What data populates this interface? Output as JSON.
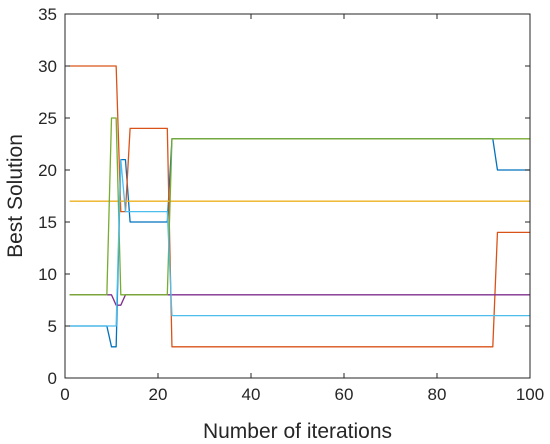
{
  "chart_data": {
    "type": "line",
    "xlabel": "Number of iterations",
    "ylabel": "Best Solution",
    "xlim": [
      0,
      100
    ],
    "ylim": [
      0,
      35
    ],
    "xticks": [
      0,
      20,
      40,
      60,
      80,
      100
    ],
    "yticks": [
      0,
      5,
      10,
      15,
      20,
      25,
      30,
      35
    ],
    "grid": false,
    "legend": "none",
    "series": [
      {
        "color": "#0072BD",
        "points": [
          [
            1,
            5
          ],
          [
            9,
            5
          ],
          [
            10,
            3
          ],
          [
            11,
            3
          ],
          [
            12,
            21
          ],
          [
            13,
            21
          ],
          [
            14,
            15
          ],
          [
            22,
            15
          ],
          [
            23,
            23
          ],
          [
            92,
            23
          ],
          [
            93,
            20
          ],
          [
            100,
            20
          ]
        ]
      },
      {
        "color": "#D95319",
        "points": [
          [
            1,
            30
          ],
          [
            11,
            30
          ],
          [
            12,
            16
          ],
          [
            13,
            16
          ],
          [
            14,
            24
          ],
          [
            22,
            24
          ],
          [
            23,
            3
          ],
          [
            92,
            3
          ],
          [
            93,
            14
          ],
          [
            100,
            14
          ]
        ]
      },
      {
        "color": "#EDB120",
        "points": [
          [
            1,
            17
          ],
          [
            100,
            17
          ]
        ]
      },
      {
        "color": "#7E2F8E",
        "points": [
          [
            1,
            8
          ],
          [
            10,
            8
          ],
          [
            11,
            7
          ],
          [
            12,
            7
          ],
          [
            13,
            8
          ],
          [
            100,
            8
          ]
        ]
      },
      {
        "color": "#77AC30",
        "points": [
          [
            1,
            8
          ],
          [
            9,
            8
          ],
          [
            10,
            25
          ],
          [
            11,
            25
          ],
          [
            12,
            8
          ],
          [
            22,
            8
          ],
          [
            23,
            23
          ],
          [
            100,
            23
          ]
        ]
      },
      {
        "color": "#4DBEEE",
        "points": [
          [
            1,
            5
          ],
          [
            10,
            5
          ],
          [
            11,
            5
          ],
          [
            12,
            21
          ],
          [
            13,
            16
          ],
          [
            22,
            16
          ],
          [
            23,
            6
          ],
          [
            100,
            6
          ]
        ]
      }
    ]
  }
}
